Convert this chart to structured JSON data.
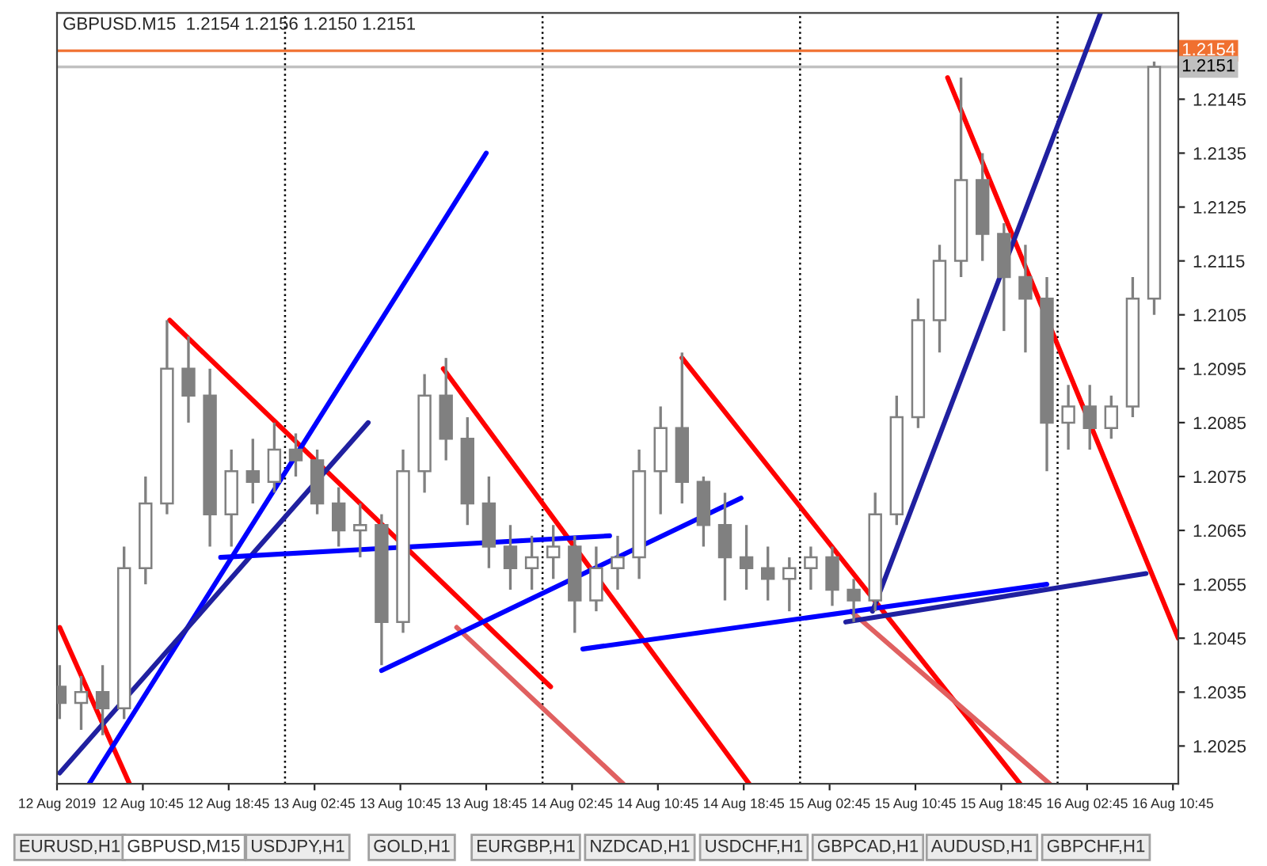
{
  "chart_data": {
    "type": "candlestick",
    "title": "GBPUSD.M15  1.2154 1.2156 1.2150 1.2151",
    "color": "#808080",
    "x": [
      "2019-08-12T03:00",
      "2019-08-12T05:00",
      "2019-08-12T07:00",
      "2019-08-12T09:00",
      "2019-08-12T11:00",
      "2019-08-12T13:00",
      "2019-08-12T15:00",
      "2019-08-12T17:00",
      "2019-08-12T19:00",
      "2019-08-12T21:00",
      "2019-08-12T23:00",
      "2019-08-13T01:00",
      "2019-08-13T03:00",
      "2019-08-13T05:00",
      "2019-08-13T07:00",
      "2019-08-13T09:00",
      "2019-08-13T11:00",
      "2019-08-13T13:00",
      "2019-08-13T15:00",
      "2019-08-13T17:00",
      "2019-08-13T19:00",
      "2019-08-13T21:00",
      "2019-08-13T23:00",
      "2019-08-14T01:00",
      "2019-08-14T03:00",
      "2019-08-14T05:00",
      "2019-08-14T07:00",
      "2019-08-14T09:00",
      "2019-08-14T11:00",
      "2019-08-14T13:00",
      "2019-08-14T15:00",
      "2019-08-14T17:00",
      "2019-08-14T19:00",
      "2019-08-14T21:00",
      "2019-08-14T23:00",
      "2019-08-15T01:00",
      "2019-08-15T03:00",
      "2019-08-15T05:00",
      "2019-08-15T07:00",
      "2019-08-15T09:00",
      "2019-08-15T11:00",
      "2019-08-15T13:00",
      "2019-08-15T15:00",
      "2019-08-15T17:00",
      "2019-08-15T19:00",
      "2019-08-15T21:00",
      "2019-08-15T23:00",
      "2019-08-16T01:00",
      "2019-08-16T03:00",
      "2019-08-16T05:00",
      "2019-08-16T07:00",
      "2019-08-16T09:00"
    ],
    "ohlc": [
      [
        1.2036,
        1.204,
        1.203,
        1.2033
      ],
      [
        1.2033,
        1.2038,
        1.2028,
        1.2035
      ],
      [
        1.2035,
        1.204,
        1.2027,
        1.2032
      ],
      [
        1.2032,
        1.2062,
        1.203,
        1.2058
      ],
      [
        1.2058,
        1.2075,
        1.2055,
        1.207
      ],
      [
        1.207,
        1.2104,
        1.2068,
        1.2095
      ],
      [
        1.2095,
        1.2101,
        1.2085,
        1.209
      ],
      [
        1.209,
        1.2095,
        1.2062,
        1.2068
      ],
      [
        1.2068,
        1.208,
        1.2062,
        1.2076
      ],
      [
        1.2076,
        1.2082,
        1.207,
        1.2074
      ],
      [
        1.2074,
        1.2085,
        1.2072,
        1.208
      ],
      [
        1.208,
        1.2083,
        1.2075,
        1.2078
      ],
      [
        1.2078,
        1.208,
        1.2068,
        1.207
      ],
      [
        1.207,
        1.2073,
        1.2062,
        1.2065
      ],
      [
        1.2065,
        1.207,
        1.206,
        1.2066
      ],
      [
        1.2066,
        1.2068,
        1.204,
        1.2048
      ],
      [
        1.2048,
        1.208,
        1.2046,
        1.2076
      ],
      [
        1.2076,
        1.2094,
        1.2072,
        1.209
      ],
      [
        1.209,
        1.2097,
        1.2078,
        1.2082
      ],
      [
        1.2082,
        1.2086,
        1.2066,
        1.207
      ],
      [
        1.207,
        1.2075,
        1.2058,
        1.2062
      ],
      [
        1.2062,
        1.2066,
        1.2054,
        1.2058
      ],
      [
        1.2058,
        1.2064,
        1.2054,
        1.206
      ],
      [
        1.206,
        1.2066,
        1.2056,
        1.2062
      ],
      [
        1.2062,
        1.2064,
        1.2046,
        1.2052
      ],
      [
        1.2052,
        1.2062,
        1.205,
        1.2058
      ],
      [
        1.2058,
        1.2064,
        1.2054,
        1.206
      ],
      [
        1.206,
        1.208,
        1.2056,
        1.2076
      ],
      [
        1.2076,
        1.2088,
        1.2068,
        1.2084
      ],
      [
        1.2084,
        1.2098,
        1.207,
        1.2074
      ],
      [
        1.2074,
        1.2075,
        1.2062,
        1.2066
      ],
      [
        1.2066,
        1.2072,
        1.2052,
        1.206
      ],
      [
        1.206,
        1.2066,
        1.2054,
        1.2058
      ],
      [
        1.2058,
        1.2062,
        1.2052,
        1.2056
      ],
      [
        1.2056,
        1.206,
        1.205,
        1.2058
      ],
      [
        1.2058,
        1.2062,
        1.2054,
        1.206
      ],
      [
        1.206,
        1.2062,
        1.2051,
        1.2054
      ],
      [
        1.2054,
        1.2056,
        1.2048,
        1.2052
      ],
      [
        1.2052,
        1.2072,
        1.205,
        1.2068
      ],
      [
        1.2068,
        1.209,
        1.2066,
        1.2086
      ],
      [
        1.2086,
        1.2108,
        1.2084,
        1.2104
      ],
      [
        1.2104,
        1.2118,
        1.2098,
        1.2115
      ],
      [
        1.2115,
        1.2149,
        1.2112,
        1.213
      ],
      [
        1.213,
        1.2135,
        1.2115,
        1.212
      ],
      [
        1.212,
        1.2122,
        1.2102,
        1.2112
      ],
      [
        1.2112,
        1.2118,
        1.2098,
        1.2108
      ],
      [
        1.2108,
        1.2112,
        1.2076,
        1.2085
      ],
      [
        1.2085,
        1.2092,
        1.208,
        1.2088
      ],
      [
        1.2088,
        1.2092,
        1.208,
        1.2084
      ],
      [
        1.2084,
        1.209,
        1.2082,
        1.2088
      ],
      [
        1.2088,
        1.2112,
        1.2086,
        1.2108
      ],
      [
        1.2108,
        1.2152,
        1.2105,
        1.2151
      ]
    ],
    "series": [
      {
        "type": "line",
        "color": "#ff0000",
        "x": [
          "2019-08-12T13:15",
          "2019-08-14T00:45"
        ],
        "values": [
          1.2104,
          1.2036
        ]
      },
      {
        "type": "line",
        "color": "#e06060",
        "x": [
          "2019-08-13T16:00",
          "2019-08-14T07:30"
        ],
        "values": [
          1.2047,
          1.2018
        ]
      },
      {
        "type": "line",
        "color": "#ff0000",
        "x": [
          "2019-08-12T03:00",
          "2019-08-12T09:30"
        ],
        "values": [
          1.2047,
          1.2018
        ]
      },
      {
        "type": "line",
        "color": "#ff0000",
        "x": [
          "2019-08-13T14:45",
          "2019-08-14T19:15"
        ],
        "values": [
          1.2095,
          1.2018
        ]
      },
      {
        "type": "line",
        "color": "#ff0000",
        "x": [
          "2019-08-14T13:00",
          "2019-08-15T20:30"
        ],
        "values": [
          1.2097,
          1.2018
        ]
      },
      {
        "type": "line",
        "color": "#e06060",
        "x": [
          "2019-08-15T04:45",
          "2019-08-15T23:15"
        ],
        "values": [
          1.205,
          1.2018
        ]
      },
      {
        "type": "line",
        "color": "#ff0000",
        "x": [
          "2019-08-15T13:45",
          "2019-08-16T11:15"
        ],
        "values": [
          1.2149,
          1.2045
        ]
      },
      {
        "type": "line",
        "color": "#0000ff",
        "x": [
          "2019-08-12T05:45",
          "2019-08-13T18:45"
        ],
        "values": [
          1.2018,
          1.2135
        ]
      },
      {
        "type": "line",
        "color": "#2020a0",
        "x": [
          "2019-08-12T03:00",
          "2019-08-13T07:45"
        ],
        "values": [
          1.202,
          1.2085
        ]
      },
      {
        "type": "line",
        "color": "#0000ff",
        "x": [
          "2019-08-12T18:00",
          "2019-08-14T06:15"
        ],
        "values": [
          1.206,
          1.2064
        ]
      },
      {
        "type": "line",
        "color": "#0000ff",
        "x": [
          "2019-08-13T09:00",
          "2019-08-14T18:30"
        ],
        "values": [
          1.2039,
          1.2071
        ]
      },
      {
        "type": "line",
        "color": "#0000ff",
        "x": [
          "2019-08-14T03:45",
          "2019-08-15T23:00"
        ],
        "values": [
          1.2043,
          1.2055
        ]
      },
      {
        "type": "line",
        "color": "#2020a0",
        "x": [
          "2019-08-15T04:15",
          "2019-08-16T08:15"
        ],
        "values": [
          1.2048,
          1.2057
        ]
      },
      {
        "type": "line",
        "color": "#2020a0",
        "x": [
          "2019-08-15T06:45",
          "2019-08-16T04:00"
        ],
        "values": [
          1.205,
          1.2161
        ]
      }
    ],
    "xlim": [
      "2019-08-12T02:45",
      "2019-08-16T11:15"
    ],
    "ylim": [
      1.2018,
      1.2161
    ],
    "yticks": [
      1.2025,
      1.2035,
      1.2045,
      1.2055,
      1.2065,
      1.2075,
      1.2085,
      1.2095,
      1.2105,
      1.2115,
      1.2125,
      1.2135,
      1.2145
    ],
    "xticks": [
      {
        "value": "2019-08-12T02:45",
        "label": "12 Aug 2019"
      },
      {
        "value": "2019-08-12T10:45",
        "label": "12 Aug 10:45"
      },
      {
        "value": "2019-08-12T18:45",
        "label": "12 Aug 18:45"
      },
      {
        "value": "2019-08-13T02:45",
        "label": "13 Aug 02:45"
      },
      {
        "value": "2019-08-13T10:45",
        "label": "13 Aug 10:45"
      },
      {
        "value": "2019-08-13T18:45",
        "label": "13 Aug 18:45"
      },
      {
        "value": "2019-08-14T02:45",
        "label": "14 Aug 02:45"
      },
      {
        "value": "2019-08-14T10:45",
        "label": "14 Aug 10:45"
      },
      {
        "value": "2019-08-14T18:45",
        "label": "14 Aug 18:45"
      },
      {
        "value": "2019-08-15T02:45",
        "label": "15 Aug 02:45"
      },
      {
        "value": "2019-08-15T10:45",
        "label": "15 Aug 10:45"
      },
      {
        "value": "2019-08-15T18:45",
        "label": "15 Aug 18:45"
      },
      {
        "value": "2019-08-16T02:45",
        "label": "16 Aug 02:45"
      },
      {
        "value": "2019-08-16T10:45",
        "label": "16 Aug 10:45"
      }
    ],
    "ref_lines": [
      {
        "axis": "y",
        "value": 1.2154,
        "label": "1.2154",
        "color": "#f07030",
        "line_style": "solid"
      },
      {
        "axis": "y",
        "value": 1.2151,
        "label": "1.2151",
        "color": "#c0c0c0",
        "line_style": "solid"
      },
      {
        "axis": "x",
        "value": "2019-08-13T00:00",
        "color": "#000000",
        "line_style": "dotted"
      },
      {
        "axis": "x",
        "value": "2019-08-14T00:00",
        "color": "#000000",
        "line_style": "dotted"
      },
      {
        "axis": "x",
        "value": "2019-08-15T00:00",
        "color": "#000000",
        "line_style": "dotted"
      },
      {
        "axis": "x",
        "value": "2019-08-16T00:00",
        "color": "#000000",
        "line_style": "dotted"
      }
    ],
    "annotations": [
      "EURUSD,H1",
      "GBPUSD,M15",
      "USDJPY,H1",
      "GOLD,H1",
      "EURGBP,H1",
      "NZDCAD,H1",
      "USDCHF,H1",
      "GBPCAD,H1",
      "AUDUSD,H1",
      "GBPCHF,H1"
    ],
    "grid": false,
    "legend": false
  }
}
